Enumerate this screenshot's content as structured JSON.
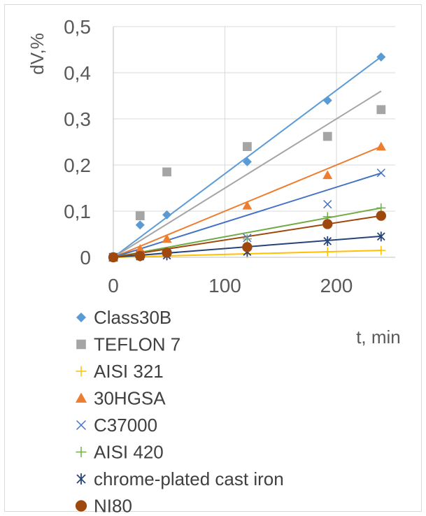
{
  "chart_data": {
    "type": "scatter",
    "xlabel": "t, min",
    "ylabel": "dV,%",
    "xlim": [
      0,
      250
    ],
    "ylim": [
      0,
      0.5
    ],
    "xticks": [
      0,
      100,
      200
    ],
    "yticks": [
      0,
      0.1,
      0.2,
      0.3,
      0.4,
      0.5
    ],
    "xtick_labels": [
      "0",
      "100",
      "200"
    ],
    "ytick_labels": [
      "0",
      "0,1",
      "0,2",
      "0,3",
      "0,4",
      "0,5"
    ],
    "grid": true,
    "trendlines": "linear",
    "legend_position": "bottom",
    "series": [
      {
        "name": "Class30B",
        "color": "#5b9bd5",
        "marker": "diamond",
        "x": [
          0,
          24,
          48,
          120,
          192,
          240
        ],
        "y": [
          0,
          0.07,
          0.092,
          0.207,
          0.34,
          0.434
        ],
        "trend": [
          0.0,
          0.00181
        ]
      },
      {
        "name": "TEFLON 7",
        "color": "#a5a5a5",
        "marker": "square",
        "x": [
          0,
          24,
          48,
          120,
          192,
          240
        ],
        "y": [
          0,
          0.09,
          0.185,
          0.24,
          0.262,
          0.32
        ],
        "trend": [
          0.0,
          0.0015
        ]
      },
      {
        "name": "AISI 321",
        "color": "#ffc000",
        "marker": "plus",
        "x": [
          0,
          24,
          48,
          120,
          192,
          240
        ],
        "y": [
          0,
          0.002,
          0.004,
          0.008,
          0.012,
          0.015
        ],
        "trend": [
          0.0,
          6.25e-05
        ]
      },
      {
        "name": "30HGSA",
        "color": "#ed7d31",
        "marker": "triangle",
        "x": [
          0,
          24,
          48,
          120,
          192,
          240
        ],
        "y": [
          0,
          0.018,
          0.04,
          0.112,
          0.178,
          0.24
        ],
        "trend": [
          0.0,
          0.001
        ]
      },
      {
        "name": "C37000",
        "color": "#4472c4",
        "marker": "x",
        "x": [
          0,
          24,
          48,
          120,
          192,
          240
        ],
        "y": [
          0,
          0.005,
          0.01,
          0.042,
          0.115,
          0.183
        ],
        "trend": [
          0.0,
          0.00076
        ]
      },
      {
        "name": "AISI 420",
        "color": "#70ad47",
        "marker": "plus",
        "x": [
          0,
          24,
          48,
          120,
          192,
          240
        ],
        "y": [
          0,
          0.004,
          0.008,
          0.04,
          0.088,
          0.107
        ],
        "trend": [
          0.0,
          0.000445
        ]
      },
      {
        "name": "chrome-plated cast iron",
        "color": "#264478",
        "marker": "asterisk",
        "x": [
          0,
          24,
          48,
          120,
          192,
          240
        ],
        "y": [
          0,
          0.002,
          0.004,
          0.012,
          0.035,
          0.045
        ],
        "trend": [
          0.0,
          0.00019
        ]
      },
      {
        "name": "NI80",
        "color": "#9e480e",
        "marker": "circle",
        "x": [
          0,
          24,
          48,
          120,
          192,
          240
        ],
        "y": [
          0,
          0.003,
          0.01,
          0.022,
          0.072,
          0.09
        ],
        "trend": [
          0.0,
          0.000375
        ]
      }
    ]
  }
}
